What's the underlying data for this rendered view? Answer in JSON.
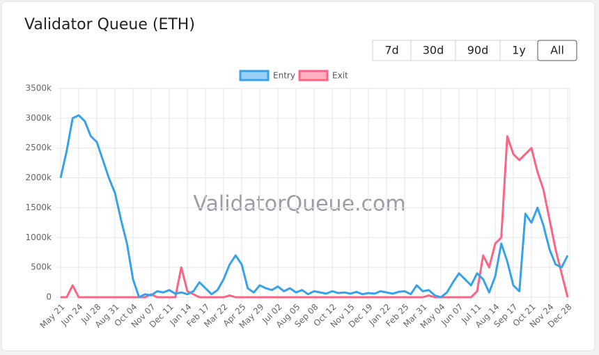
{
  "range_buttons": [
    "7d",
    "30d",
    "90d",
    "1y",
    "All"
  ],
  "active_button": 4,
  "chart_data": {
    "type": "line",
    "title": "Validator Queue (ETH)",
    "watermark": "ValidatorQueue.com",
    "categories": [
      "May 21",
      null,
      null,
      "Jun 24",
      null,
      null,
      "Jul 28",
      null,
      null,
      "Aug 31",
      null,
      null,
      "Oct 04",
      null,
      null,
      "Nov 07",
      null,
      null,
      "Dec 11",
      null,
      null,
      "Jan 14",
      null,
      null,
      "Feb 17",
      null,
      null,
      "Mar 22",
      null,
      null,
      "Apr 25",
      null,
      null,
      "May 29",
      null,
      null,
      "Jul 02",
      null,
      null,
      "Aug 05",
      null,
      null,
      "Sep 08",
      null,
      null,
      "Oct 12",
      null,
      null,
      "Nov 15",
      null,
      null,
      "Dec 19",
      null,
      null,
      "Jan 22",
      null,
      null,
      "Feb 25",
      null,
      null,
      "Mar 31",
      null,
      null,
      "May 04",
      null,
      null,
      "Jun 07",
      null,
      null,
      "Jul 11",
      null,
      null,
      "Aug 14",
      null,
      null,
      "Sep 17",
      null,
      null,
      "Oct 21",
      null,
      null,
      "Nov 24",
      null,
      null,
      "Dec 28"
    ],
    "series": [
      {
        "name": "Entry",
        "color": "#36a2eb",
        "values": [
          2000000,
          2450000,
          3000000,
          3050000,
          2950000,
          2700000,
          2600000,
          2300000,
          2000000,
          1750000,
          1300000,
          900000,
          300000,
          0,
          50000,
          30000,
          100000,
          80000,
          120000,
          60000,
          80000,
          50000,
          100000,
          250000,
          150000,
          50000,
          120000,
          300000,
          550000,
          700000,
          550000,
          150000,
          80000,
          200000,
          150000,
          120000,
          180000,
          100000,
          150000,
          80000,
          120000,
          50000,
          100000,
          80000,
          60000,
          100000,
          70000,
          80000,
          60000,
          90000,
          50000,
          70000,
          60000,
          100000,
          80000,
          60000,
          90000,
          100000,
          50000,
          200000,
          100000,
          120000,
          30000,
          0,
          80000,
          250000,
          400000,
          300000,
          200000,
          400000,
          300000,
          80000,
          350000,
          900000,
          600000,
          200000,
          100000,
          1400000,
          1250000,
          1500000,
          1200000,
          800000,
          550000,
          500000,
          700000
        ]
      },
      {
        "name": "Exit",
        "color": "#ff6384",
        "values": [
          0,
          0,
          200000,
          0,
          0,
          0,
          0,
          0,
          0,
          0,
          0,
          0,
          0,
          0,
          0,
          50000,
          0,
          0,
          0,
          0,
          500000,
          100000,
          50000,
          0,
          0,
          0,
          0,
          0,
          30000,
          0,
          0,
          0,
          0,
          0,
          0,
          0,
          0,
          0,
          0,
          0,
          0,
          0,
          0,
          0,
          0,
          0,
          0,
          0,
          0,
          0,
          0,
          0,
          0,
          0,
          0,
          0,
          0,
          0,
          0,
          0,
          0,
          30000,
          0,
          0,
          0,
          0,
          0,
          0,
          0,
          100000,
          700000,
          500000,
          900000,
          1000000,
          2700000,
          2400000,
          2300000,
          2400000,
          2500000,
          2100000,
          1800000,
          1300000,
          800000,
          400000,
          0
        ]
      }
    ],
    "ylim": [
      0,
      3500000
    ],
    "yticks": [
      0,
      {
        "value": 500000,
        "label": "500k"
      },
      {
        "value": 1000000,
        "label": "1000k"
      },
      {
        "value": 1500000,
        "label": "1500k"
      },
      {
        "value": 2000000,
        "label": "2000k"
      },
      {
        "value": 2500000,
        "label": "2500k"
      },
      {
        "value": 3000000,
        "label": "3000k"
      },
      {
        "value": 3500000,
        "label": "3500k"
      }
    ],
    "grid": true,
    "legend": "top"
  }
}
